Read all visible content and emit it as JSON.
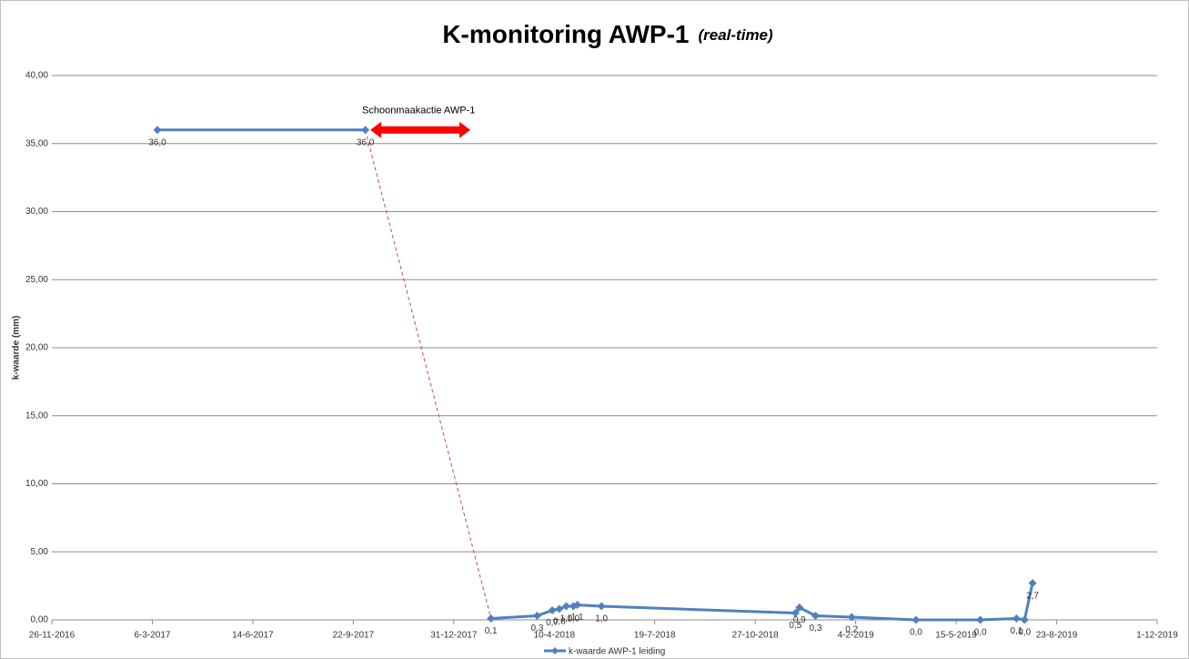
{
  "chart_data": {
    "type": "line",
    "title": "K-monitoring AWP-1",
    "subtitle": "(real-time)",
    "y_label": "k-waarde (mm)",
    "annotation": "Schoonmaakactie AWP-1",
    "x": [
      "2017-03-11",
      "2017-10-04",
      null,
      "2018-02-06",
      "2018-03-24",
      "2018-04-08",
      "2018-04-15",
      "2018-04-22",
      "2018-04-29",
      "2018-05-03",
      "2018-05-27",
      "2018-12-06",
      "2018-12-10",
      "2018-12-26",
      "2019-01-31",
      "2019-04-05",
      "2019-06-08",
      "2019-07-14",
      "2019-07-22",
      "2019-07-30"
    ],
    "series": [
      {
        "name": "k-waarde AWP-1 leiding",
        "color": "#4f81bd",
        "values": [
          36.0,
          36.0,
          null,
          0.1,
          0.3,
          0.7,
          0.8,
          1.0,
          1.0,
          1.1,
          1.0,
          0.5,
          0.9,
          0.3,
          0.2,
          0.0,
          0.0,
          0.1,
          0.0,
          2.7
        ],
        "value_labels": [
          "36,0",
          "36,0",
          null,
          "0,1",
          "0,3",
          "0,7",
          "0,8",
          "1,0",
          "1,0",
          "1,1",
          "1,0",
          "0,5",
          "0,9",
          "0,3",
          "0,2",
          "0,0",
          "0,0",
          "0,1",
          "0,0",
          "2,7"
        ]
      }
    ],
    "xlim": [
      "2016-11-26",
      "2019-12-01"
    ],
    "xticks": [
      {
        "value": "2016-11-26",
        "label": "26-11-2016"
      },
      {
        "value": "2017-03-06",
        "label": "6-3-2017"
      },
      {
        "value": "2017-06-14",
        "label": "14-6-2017"
      },
      {
        "value": "2017-09-22",
        "label": "22-9-2017"
      },
      {
        "value": "2017-12-31",
        "label": "31-12-2017"
      },
      {
        "value": "2018-04-10",
        "label": "10-4-2018"
      },
      {
        "value": "2018-07-19",
        "label": "19-7-2018"
      },
      {
        "value": "2018-10-27",
        "label": "27-10-2018"
      },
      {
        "value": "2019-02-04",
        "label": "4-2-2019"
      },
      {
        "value": "2019-05-15",
        "label": "15-5-2019"
      },
      {
        "value": "2019-08-23",
        "label": "23-8-2019"
      },
      {
        "value": "2019-12-01",
        "label": "1-12-2019"
      }
    ],
    "ylim": [
      0,
      40
    ],
    "yticks": [
      {
        "value": 0,
        "label": "0,00"
      },
      {
        "value": 5,
        "label": "5,00"
      },
      {
        "value": 10,
        "label": "10,00"
      },
      {
        "value": 15,
        "label": "15,00"
      },
      {
        "value": 20,
        "label": "20,00"
      },
      {
        "value": 25,
        "label": "25,00"
      },
      {
        "value": 30,
        "label": "30,00"
      },
      {
        "value": 35,
        "label": "35,00"
      },
      {
        "value": 40,
        "label": "40,00"
      }
    ],
    "grid": true,
    "legend": "bottom"
  }
}
